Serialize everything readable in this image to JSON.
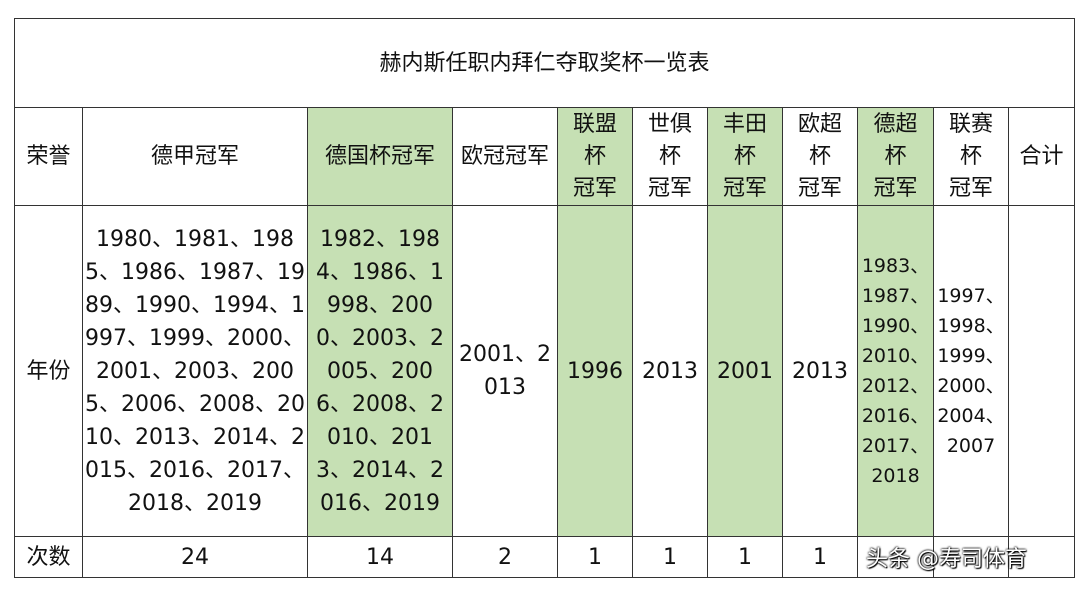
{
  "title": "赫内斯任职内拜仁夺取奖杯一览表",
  "colors": {
    "highlight": "#c6e0b4",
    "border": "#333333"
  },
  "headers": {
    "row_label": "荣誉",
    "bundesliga": "德甲冠军",
    "dfb_pokal": "德国杯冠军",
    "champions_league": "欧冠冠军",
    "league_cup": "联盟\n杯\n冠军",
    "club_world_cup": "世俱\n杯\n冠军",
    "toyota_cup": "丰田\n杯\n冠军",
    "super_cup": "欧超\n杯\n冠军",
    "german_super_cup": "德超\n杯\n冠军",
    "liga_pokal": "联赛\n杯\n冠军",
    "total": "合计"
  },
  "years_row": {
    "label": "年份",
    "bundesliga": "1980、1981、1985、1986、1987、1989、1990、1994、1997、1999、2000、2001、2003、2005、2006、2008、2010、2013、2014、2015、2016、2017、2018、2019",
    "dfb_pokal": "1982、1984、1986、1998、2000、2003、2005、2006、2008、2010、2013、2014、2016、2019",
    "champions_league": "2001、2013",
    "league_cup": "1996",
    "club_world_cup": "2013",
    "toyota_cup": "2001",
    "super_cup": "2013",
    "german_super_cup": "1983、1987、1990、2010、2012、2016、2017、2018",
    "liga_pokal": "1997、1998、1999、2000、2004、2007",
    "total": ""
  },
  "count_row": {
    "label": "次数",
    "bundesliga": "24",
    "dfb_pokal": "14",
    "champions_league": "2",
    "league_cup": "1",
    "club_world_cup": "1",
    "toyota_cup": "1",
    "super_cup": "1",
    "german_super_cup": "",
    "liga_pokal": "",
    "total": ""
  },
  "watermark": "头条 @寿司体育"
}
